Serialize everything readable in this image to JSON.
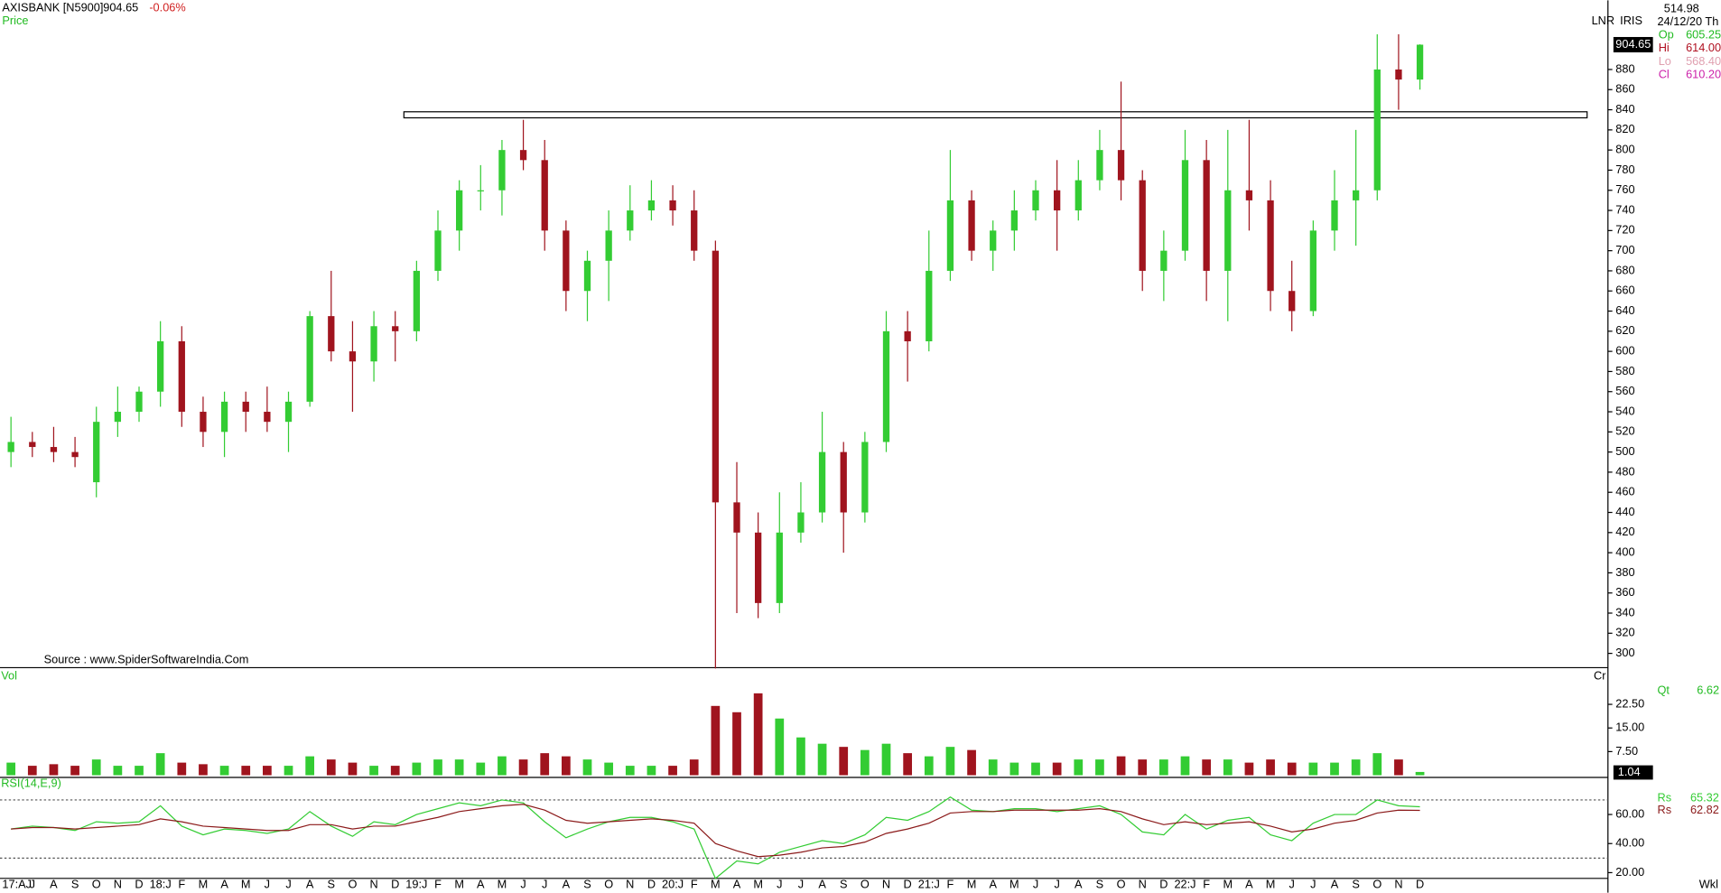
{
  "header": {
    "symbol": "AXISBANK [N5900]",
    "change": "-0.06%",
    "price_label": "Price",
    "mode": "LNR",
    "indicator": "IRIS",
    "source": "Source : www.SpiderSoftwareIndia.Com",
    "period": "Wkl"
  },
  "info": {
    "value": "514.98",
    "date": "24/12/20 Th",
    "rows": [
      {
        "name": "Op",
        "value": "605.25",
        "color": "#22bb22"
      },
      {
        "name": "Hi",
        "value": "614.00",
        "color": "#b01020"
      },
      {
        "name": "Lo",
        "value": "568.40",
        "color": "#e0a0b0"
      },
      {
        "name": "Cl",
        "value": "610.20",
        "color": "#cc22aa"
      }
    ]
  },
  "chart_data": [
    {
      "type": "candlestick",
      "up_color": "#33cc33",
      "down_color": "#a0141e",
      "categories": [
        "17:AJ",
        "J",
        "A",
        "S",
        "O",
        "N",
        "D",
        "18:J",
        "F",
        "M",
        "A",
        "M",
        "J",
        "J",
        "A",
        "S",
        "O",
        "N",
        "D",
        "19:J",
        "F",
        "M",
        "A",
        "M",
        "J",
        "J",
        "A",
        "S",
        "O",
        "N",
        "D",
        "20:J",
        "F",
        "M",
        "A",
        "M",
        "J",
        "J",
        "A",
        "S",
        "O",
        "N",
        "D",
        "21:J",
        "F",
        "M",
        "A",
        "M",
        "J",
        "J",
        "A",
        "S",
        "O",
        "N",
        "D",
        "22:J",
        "F",
        "M",
        "A",
        "M",
        "J",
        "J",
        "A",
        "S",
        "O",
        "N",
        "D"
      ],
      "open": [
        500,
        510,
        505,
        500,
        470,
        530,
        540,
        560,
        610,
        540,
        520,
        550,
        540,
        530,
        550,
        635,
        600,
        590,
        625,
        620,
        680,
        720,
        760,
        760,
        800,
        790,
        720,
        660,
        690,
        720,
        740,
        750,
        740,
        700,
        450,
        420,
        350,
        420,
        440,
        500,
        440,
        510,
        620,
        610,
        680,
        750,
        700,
        720,
        740,
        760,
        740,
        770,
        800,
        770,
        680,
        700,
        790,
        680,
        760,
        750,
        660,
        640,
        720,
        750,
        760,
        880,
        870
      ],
      "high": [
        535,
        520,
        525,
        515,
        545,
        565,
        565,
        630,
        625,
        555,
        560,
        560,
        565,
        560,
        640,
        680,
        630,
        640,
        640,
        690,
        740,
        770,
        785,
        810,
        830,
        810,
        730,
        700,
        740,
        765,
        770,
        765,
        760,
        710,
        490,
        440,
        460,
        470,
        540,
        510,
        520,
        640,
        640,
        720,
        800,
        760,
        730,
        760,
        770,
        790,
        790,
        820,
        868,
        780,
        720,
        820,
        810,
        820,
        830,
        770,
        690,
        730,
        780,
        820,
        915,
        915,
        905
      ],
      "low": [
        485,
        495,
        490,
        485,
        455,
        515,
        530,
        545,
        525,
        505,
        495,
        520,
        520,
        500,
        545,
        590,
        540,
        570,
        590,
        610,
        670,
        700,
        740,
        735,
        780,
        700,
        640,
        630,
        650,
        710,
        730,
        725,
        690,
        285,
        340,
        335,
        340,
        410,
        430,
        400,
        430,
        500,
        570,
        600,
        670,
        690,
        680,
        700,
        730,
        700,
        730,
        760,
        750,
        660,
        650,
        690,
        650,
        630,
        720,
        640,
        620,
        635,
        700,
        705,
        750,
        840,
        860
      ],
      "close": [
        510,
        505,
        500,
        495,
        530,
        540,
        560,
        610,
        540,
        520,
        550,
        540,
        530,
        550,
        635,
        600,
        590,
        625,
        620,
        680,
        720,
        760,
        760,
        800,
        790,
        720,
        660,
        690,
        720,
        740,
        750,
        740,
        700,
        450,
        420,
        350,
        420,
        440,
        500,
        440,
        510,
        620,
        610,
        680,
        750,
        700,
        720,
        740,
        760,
        740,
        770,
        800,
        770,
        680,
        700,
        790,
        680,
        760,
        750,
        660,
        640,
        720,
        750,
        760,
        880,
        870,
        904.65
      ],
      "ylim": [
        285.8,
        948.7
      ],
      "yticks": [
        300,
        320,
        340,
        360,
        380,
        400,
        420,
        440,
        460,
        480,
        500,
        520,
        540,
        560,
        580,
        600,
        620,
        640,
        660,
        680,
        700,
        720,
        740,
        760,
        780,
        800,
        820,
        840,
        860,
        880
      ],
      "zone": [
        832,
        838
      ]
    },
    {
      "type": "bar",
      "title": "Vol",
      "unit": "Cr",
      "qt_name": "Qt",
      "qt_value": "6.62",
      "values": [
        4,
        3,
        3.5,
        3,
        5,
        3,
        3,
        7,
        4,
        3.5,
        3,
        3,
        3,
        3,
        6,
        5,
        4,
        3,
        3,
        4,
        5,
        5,
        4,
        6,
        5,
        7,
        6,
        5,
        4,
        3,
        3,
        3,
        5,
        22,
        20,
        26,
        18,
        12,
        10,
        9,
        8,
        10,
        7,
        6,
        9,
        8,
        5,
        4,
        4,
        4,
        5,
        5,
        6,
        5,
        5,
        6,
        5,
        5,
        4,
        5,
        4,
        4,
        4,
        5,
        7,
        5,
        1.04
      ],
      "ylim": [
        0,
        33.8
      ],
      "yticks": [
        {
          "value": 7.5,
          "label": "7.50"
        },
        {
          "value": 15,
          "label": "15.00"
        },
        {
          "value": 22.5,
          "label": "22.50"
        }
      ]
    },
    {
      "type": "line",
      "title": "RSI(14,E,9)",
      "series": [
        {
          "name": "Rs",
          "color": "#33cc33",
          "values": [
            50,
            52,
            51,
            49,
            55,
            54,
            55,
            66,
            52,
            46,
            50,
            49,
            47,
            50,
            62,
            52,
            45,
            55,
            53,
            60,
            64,
            68,
            66,
            70,
            68,
            55,
            44,
            50,
            55,
            58,
            58,
            55,
            50,
            16,
            28,
            26,
            34,
            38,
            42,
            40,
            46,
            58,
            56,
            62,
            72,
            63,
            62,
            64,
            64,
            62,
            64,
            66,
            60,
            48,
            46,
            60,
            50,
            56,
            58,
            46,
            42,
            54,
            60,
            60,
            70,
            66,
            65.32
          ]
        },
        {
          "name": "Rs",
          "color": "#8b1a1a",
          "values": [
            50,
            51,
            51,
            50,
            51,
            52,
            53,
            57,
            55,
            52,
            51,
            50,
            49,
            49,
            53,
            53,
            50,
            52,
            52,
            55,
            58,
            62,
            64,
            66,
            67,
            63,
            56,
            54,
            55,
            56,
            57,
            56,
            54,
            40,
            35,
            31,
            32,
            34,
            37,
            38,
            41,
            47,
            50,
            54,
            61,
            62,
            62,
            63,
            63,
            63,
            63,
            64,
            62,
            57,
            53,
            55,
            53,
            54,
            55,
            52,
            48,
            50,
            54,
            56,
            61,
            63,
            62.82
          ]
        }
      ],
      "ylim": [
        10,
        85.5
      ],
      "yticks": [
        {
          "value": 20,
          "label": "20.00"
        },
        {
          "value": 40,
          "label": "40.00"
        },
        {
          "value": 60,
          "label": "60.00"
        }
      ],
      "levels": [
        30,
        70
      ]
    }
  ]
}
